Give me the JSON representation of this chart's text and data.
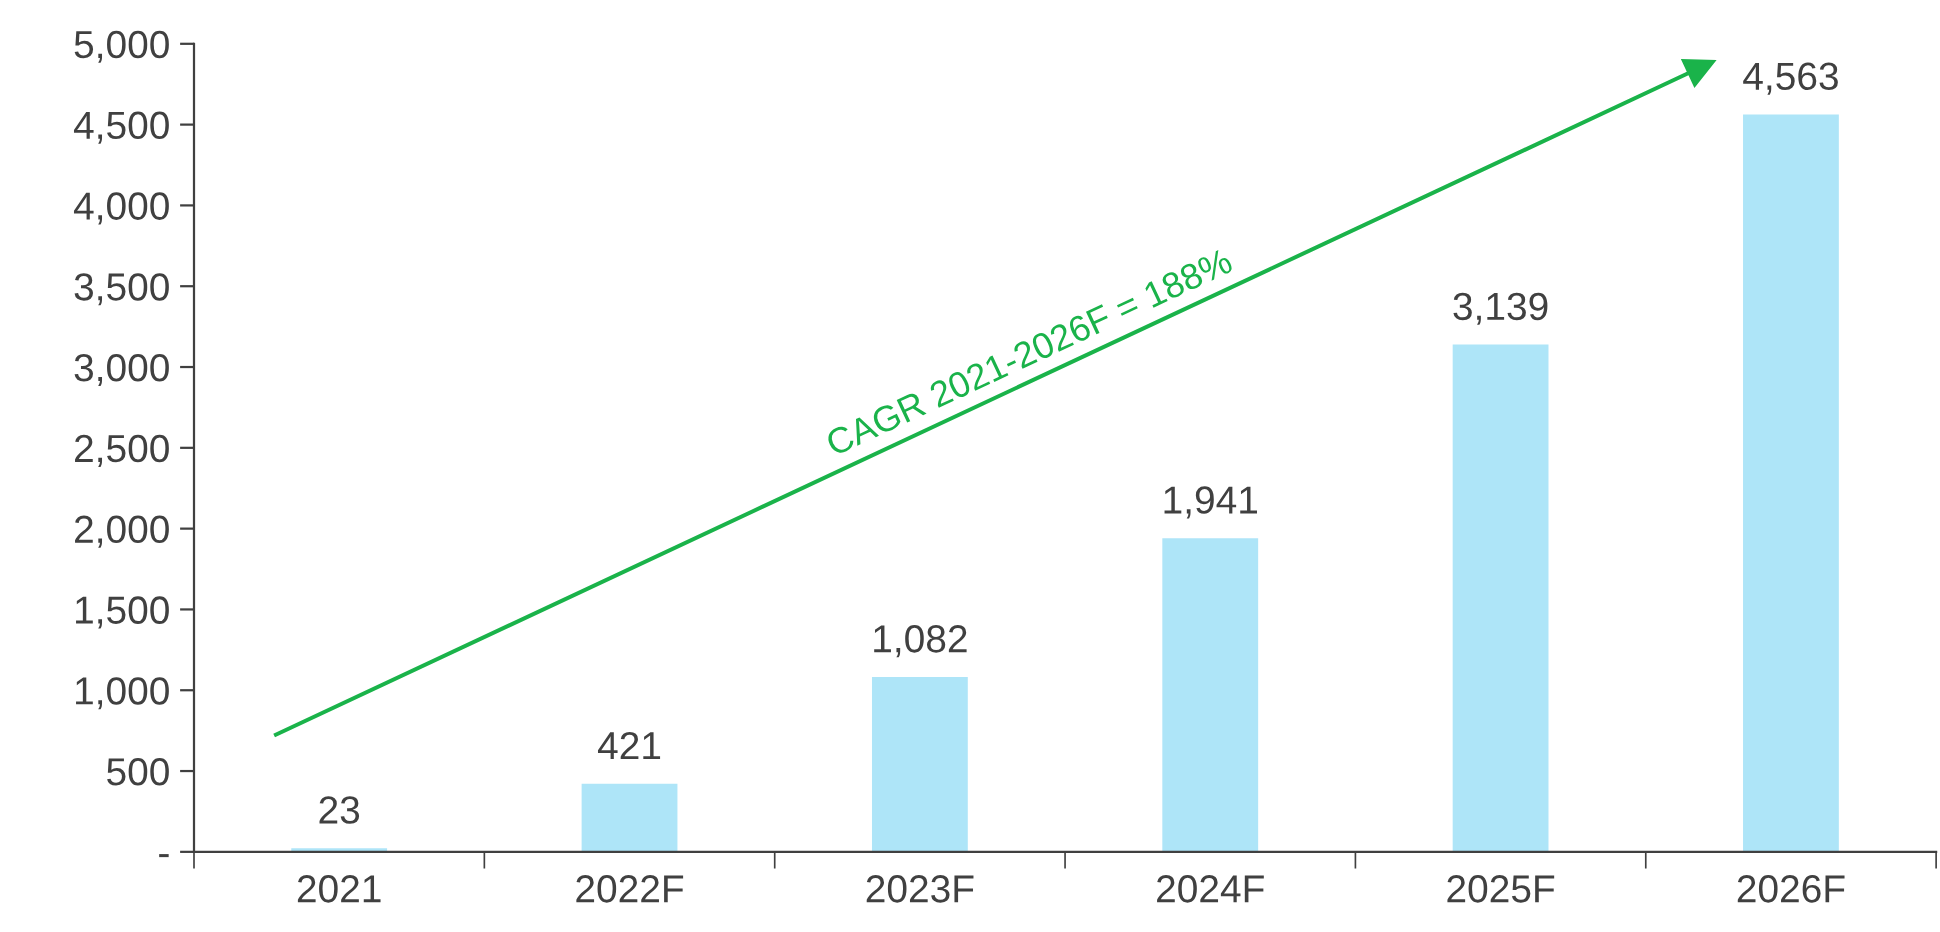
{
  "chart_data": {
    "type": "bar",
    "categories": [
      "2021",
      "2022F",
      "2023F",
      "2024F",
      "2025F",
      "2026F"
    ],
    "values": [
      23,
      421,
      1082,
      1941,
      3139,
      4563
    ],
    "color": "#aee5f8",
    "value_labels": [
      "23",
      "421",
      "1,082",
      "1,941",
      "3,139",
      "4,563"
    ],
    "ylim": [
      0,
      5000
    ],
    "yticks": [
      {
        "value": 0,
        "label": "-"
      },
      500,
      {
        "value": 1000,
        "label": "1,000"
      },
      {
        "value": 1500,
        "label": "1,500"
      },
      {
        "value": 2000,
        "label": "2,000"
      },
      {
        "value": 2500,
        "label": "2,500"
      },
      {
        "value": 3000,
        "label": "3,000"
      },
      {
        "value": 3500,
        "label": "3,500"
      },
      {
        "value": 4000,
        "label": "4,000"
      },
      {
        "value": 4500,
        "label": "4,500"
      },
      {
        "value": 5000,
        "label": "5,000"
      }
    ],
    "annotations": [
      "CAGR 2021-2026F = 188%"
    ],
    "grid": false,
    "legend": false
  }
}
